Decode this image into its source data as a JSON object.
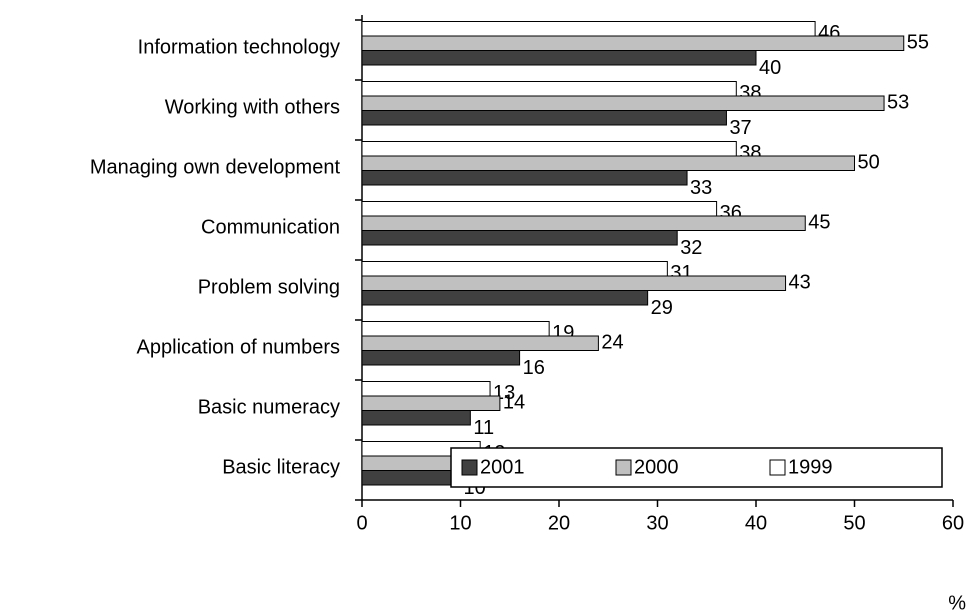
{
  "chart_data": {
    "type": "bar",
    "orientation": "horizontal",
    "categories": [
      "Information technology",
      "Working with others",
      "Managing own development",
      "Communication",
      "Problem solving",
      "Application of numbers",
      "Basic numeracy",
      "Basic literacy"
    ],
    "series": [
      {
        "name": "2001",
        "color": "#404040",
        "values": [
          40,
          37,
          33,
          32,
          29,
          16,
          11,
          10
        ]
      },
      {
        "name": "2000",
        "color": "#c0c0c0",
        "values": [
          55,
          53,
          50,
          45,
          43,
          24,
          14,
          13
        ]
      },
      {
        "name": "1999",
        "color": "#ffffff",
        "values": [
          46,
          38,
          38,
          36,
          31,
          19,
          13,
          12
        ]
      }
    ],
    "xlabel": "%",
    "xlim": [
      0,
      60
    ],
    "xticks": [
      0,
      10,
      20,
      30,
      40,
      50,
      60
    ],
    "legend": "lower right"
  }
}
